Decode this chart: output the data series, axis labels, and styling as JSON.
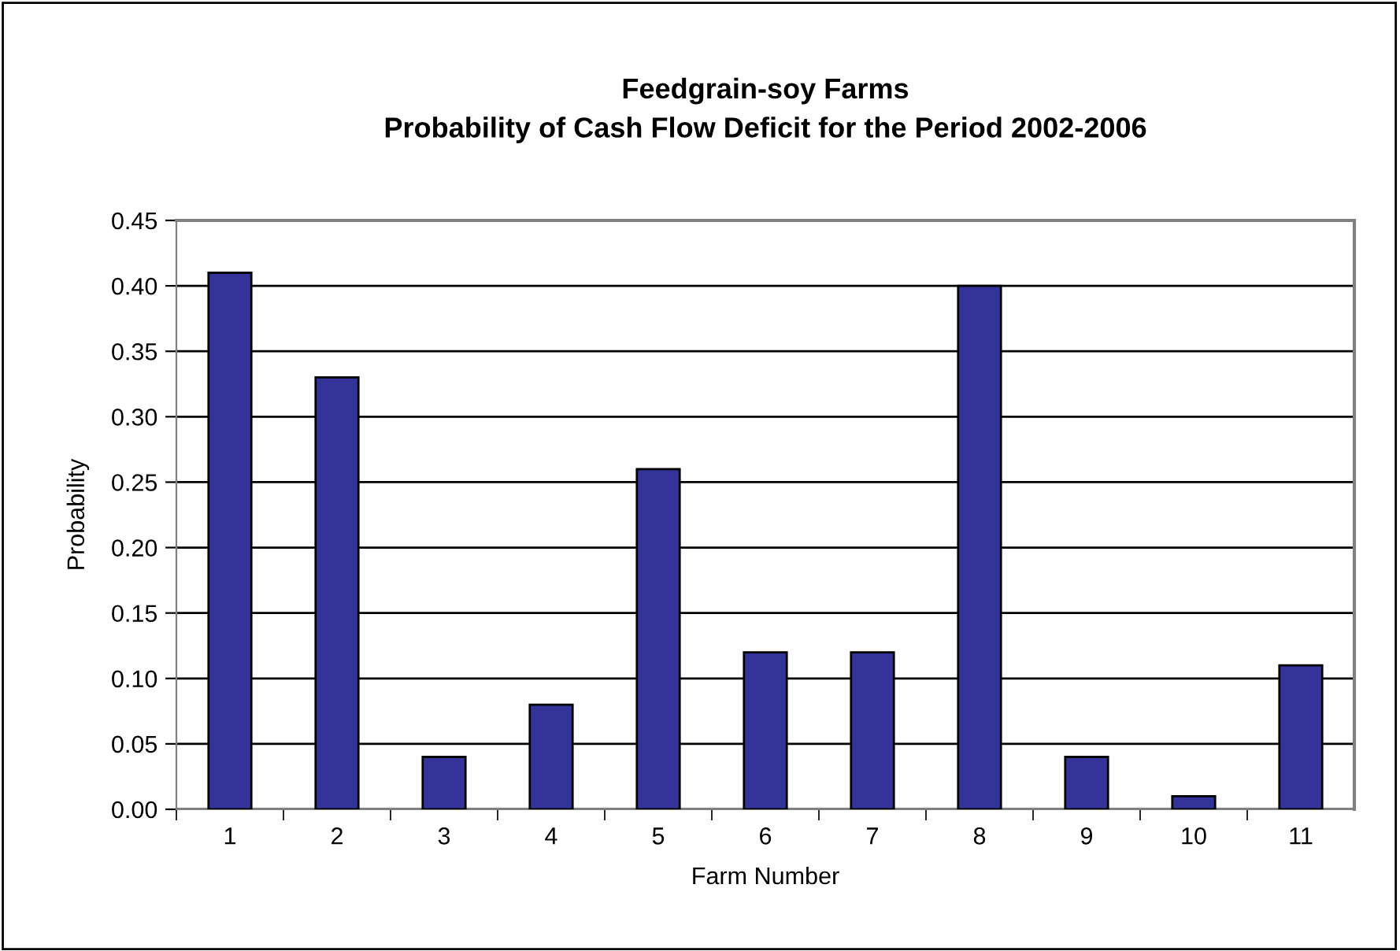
{
  "chart_data": {
    "type": "bar",
    "title": "Feedgrain-soy Farms\nProbability of Cash Flow Deficit for the Period 2002-2006",
    "xlabel": "Farm Number",
    "ylabel": "Probability",
    "categories": [
      "1",
      "2",
      "3",
      "4",
      "5",
      "6",
      "7",
      "8",
      "9",
      "10",
      "11"
    ],
    "values": [
      0.41,
      0.33,
      0.04,
      0.08,
      0.26,
      0.12,
      0.12,
      0.4,
      0.04,
      0.01,
      0.11
    ],
    "color": "#333399",
    "ylim": [
      0,
      0.45
    ],
    "yticks": [
      {
        "value": 0,
        "label": "0.00"
      },
      {
        "value": 0.05,
        "label": "0.05"
      },
      {
        "value": 0.1,
        "label": "0.10"
      },
      {
        "value": 0.15,
        "label": "0.15"
      },
      {
        "value": 0.2,
        "label": "0.20"
      },
      {
        "value": 0.25,
        "label": "0.25"
      },
      {
        "value": 0.3,
        "label": "0.30"
      },
      {
        "value": 0.35,
        "label": "0.35"
      },
      {
        "value": 0.4,
        "label": "0.40"
      },
      {
        "value": 0.45,
        "label": "0.45"
      }
    ],
    "grid": "y"
  }
}
